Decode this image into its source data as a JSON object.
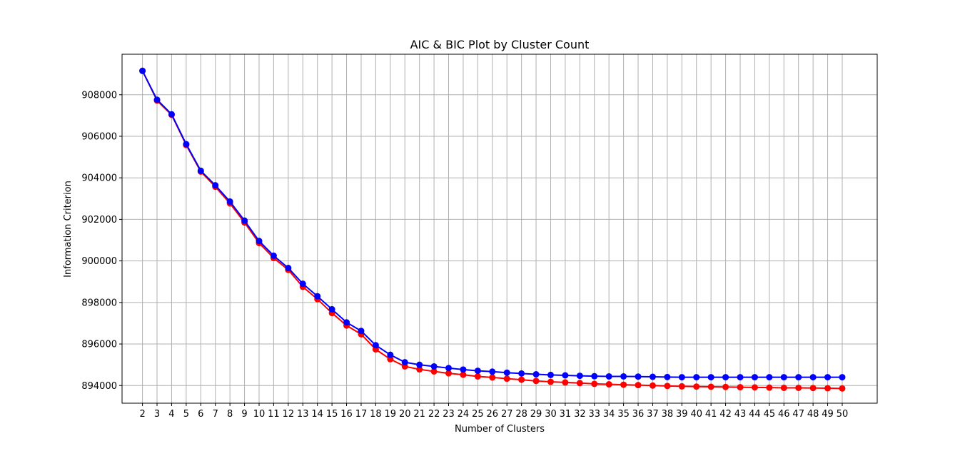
{
  "chart_data": {
    "type": "line",
    "title": "AIC & BIC Plot by Cluster Count",
    "xlabel": "Number of Clusters",
    "ylabel": "Information Criterion",
    "x": [
      2,
      3,
      4,
      5,
      6,
      7,
      8,
      9,
      10,
      11,
      12,
      13,
      14,
      15,
      16,
      17,
      18,
      19,
      20,
      21,
      22,
      23,
      24,
      25,
      26,
      27,
      28,
      29,
      30,
      31,
      32,
      33,
      34,
      35,
      36,
      37,
      38,
      39,
      40,
      41,
      42,
      43,
      44,
      45,
      46,
      47,
      48,
      49,
      50
    ],
    "xlim": [
      0.6,
      52.4
    ],
    "ylim": [
      893150,
      909950
    ],
    "yticks": [
      894000,
      896000,
      898000,
      900000,
      902000,
      904000,
      906000,
      908000
    ],
    "grid": true,
    "series": [
      {
        "color": "#ff0000",
        "values": [
          909150,
          907720,
          907030,
          905580,
          904300,
          903570,
          902770,
          901850,
          900860,
          900140,
          899570,
          898750,
          898160,
          897490,
          896890,
          896470,
          895740,
          895270,
          894920,
          894780,
          894680,
          894590,
          894520,
          894440,
          894390,
          894330,
          894280,
          894220,
          894180,
          894150,
          894120,
          894080,
          894060,
          894040,
          894020,
          894000,
          893980,
          893960,
          893950,
          893940,
          893930,
          893920,
          893910,
          893900,
          893890,
          893890,
          893880,
          893870,
          893860
        ]
      },
      {
        "color": "#0000ff",
        "values": [
          909150,
          907760,
          907060,
          905620,
          904340,
          903640,
          902860,
          901940,
          900960,
          900250,
          899660,
          898900,
          898300,
          897670,
          897040,
          896630,
          895940,
          895480,
          895120,
          895000,
          894920,
          894840,
          894770,
          894710,
          894670,
          894620,
          894580,
          894540,
          894510,
          894490,
          894470,
          894450,
          894440,
          894440,
          894430,
          894420,
          894410,
          894400,
          894400,
          894400,
          894400,
          894400,
          894400,
          894400,
          894400,
          894400,
          894400,
          894400,
          894400
        ]
      }
    ]
  }
}
